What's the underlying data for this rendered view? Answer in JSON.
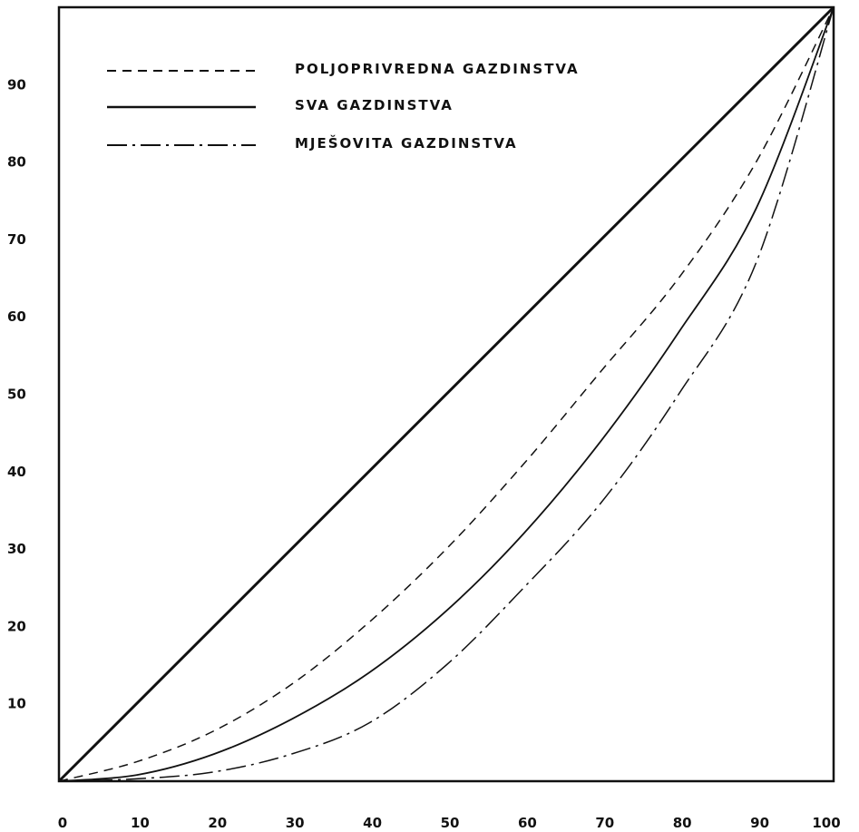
{
  "chart_data": {
    "type": "line",
    "title": "",
    "xlabel": "",
    "ylabel": "",
    "xlim": [
      0,
      100
    ],
    "ylim": [
      0,
      100
    ],
    "x_ticks": [
      "0",
      "10",
      "20",
      "30",
      "40",
      "50",
      "60",
      "70",
      "80",
      "90",
      "100"
    ],
    "y_ticks": [
      "10",
      "20",
      "30",
      "40",
      "50",
      "60",
      "70",
      "80",
      "90"
    ],
    "grid": false,
    "legend_position": "top-left",
    "equality_line": {
      "x": [
        0,
        100
      ],
      "y": [
        0,
        100
      ]
    },
    "series": [
      {
        "name": "POLJOPRIVREDNA GAZDINSTVA",
        "style": "dashed",
        "x": [
          0,
          10,
          20,
          30,
          40,
          50,
          60,
          70,
          80,
          90,
          100
        ],
        "y": [
          0,
          2.5,
          6.5,
          12.5,
          20.5,
          30,
          41,
          53,
          65,
          80,
          100
        ]
      },
      {
        "name": "SVA GAZDINSTVA",
        "style": "solid",
        "x": [
          0,
          10,
          20,
          30,
          40,
          50,
          60,
          70,
          80,
          90,
          100
        ],
        "y": [
          0,
          0.8,
          3.5,
          8,
          14,
          22,
          32,
          44,
          58,
          74,
          100
        ]
      },
      {
        "name": "MJEŠOVITA GAZDINSTVA",
        "style": "dash-dot",
        "x": [
          0,
          10,
          20,
          30,
          40,
          50,
          60,
          70,
          80,
          90,
          100
        ],
        "y": [
          0,
          0.3,
          1.2,
          3.5,
          7.5,
          15,
          25,
          36,
          50,
          67,
          100
        ]
      }
    ],
    "colors": {
      "ink": "#111111",
      "background": "#ffffff"
    }
  }
}
